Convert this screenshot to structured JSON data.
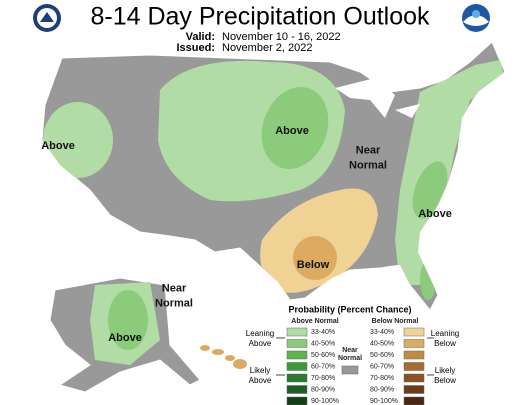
{
  "header": {
    "title": "8-14 Day Precipitation Outlook",
    "valid_label": "Valid:",
    "valid": "November 10 - 16, 2022",
    "issued_label": "Issued:",
    "issued": "November 2, 2022"
  },
  "map_labels": [
    {
      "lines": [
        "Above"
      ]
    },
    {
      "lines": [
        "Above"
      ]
    },
    {
      "lines": [
        "Near",
        "Normal"
      ]
    },
    {
      "lines": [
        "Above"
      ]
    },
    {
      "lines": [
        "Below"
      ]
    },
    {
      "lines": [
        "Near",
        "Normal"
      ]
    },
    {
      "lines": [
        "Above"
      ]
    }
  ],
  "legend": {
    "title": "Probability (Percent Chance)",
    "above_header": "Above Normal",
    "below_header": "Below Normal",
    "near_header": [
      "Near",
      "Normal"
    ],
    "near_color": "#999999",
    "above_levels": [
      {
        "label": "33-40%",
        "color": "#b2dca6"
      },
      {
        "label": "40-50%",
        "color": "#8ccb7c"
      },
      {
        "label": "50-60%",
        "color": "#5fb44f"
      },
      {
        "label": "60-70%",
        "color": "#3a9a3a"
      },
      {
        "label": "70-80%",
        "color": "#2b7a2e"
      },
      {
        "label": "80-90%",
        "color": "#1d5e22"
      },
      {
        "label": "90-100%",
        "color": "#123f15"
      }
    ],
    "below_levels": [
      {
        "label": "33-40%",
        "color": "#f0d394"
      },
      {
        "label": "40-50%",
        "color": "#dcaa61"
      },
      {
        "label": "50-60%",
        "color": "#c68a3c"
      },
      {
        "label": "60-70%",
        "color": "#a86d2e"
      },
      {
        "label": "70-80%",
        "color": "#8a5224"
      },
      {
        "label": "80-90%",
        "color": "#6b3b1b"
      },
      {
        "label": "90-100%",
        "color": "#4b2712"
      }
    ],
    "side_labels": [
      [
        "Leaning",
        "Above"
      ],
      [
        "Likely",
        "Above"
      ],
      [
        "Leaning",
        "Below"
      ],
      [
        "Likely",
        "Below"
      ]
    ]
  }
}
